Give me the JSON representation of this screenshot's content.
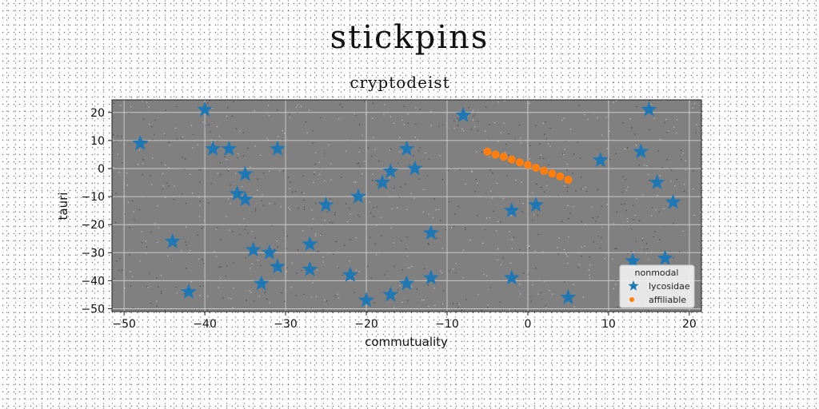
{
  "figure": {
    "title": "stickpins"
  },
  "chart_data": {
    "type": "scatter",
    "title": "cryptodeist",
    "xlabel": "commutuality",
    "ylabel": "tauri",
    "xlim": [
      -51.5,
      21.5
    ],
    "ylim": [
      -51,
      24.5
    ],
    "xticks": [
      -50,
      -40,
      -30,
      -20,
      -10,
      0,
      10,
      20
    ],
    "yticks": [
      -50,
      -40,
      -30,
      -20,
      -10,
      0,
      10,
      20
    ],
    "grid": true,
    "background": "#808080",
    "legend": {
      "title": "nonmodal",
      "placement": "lower-right"
    },
    "series": [
      {
        "name": "lycosidae",
        "marker": "star",
        "color": "#1f77b4",
        "points": [
          [
            -48,
            9
          ],
          [
            -40,
            21
          ],
          [
            -39,
            7
          ],
          [
            -37,
            7
          ],
          [
            -35,
            -2
          ],
          [
            -36,
            -9
          ],
          [
            -35,
            -11
          ],
          [
            -31,
            7
          ],
          [
            -44,
            -26
          ],
          [
            -42,
            -44
          ],
          [
            -34,
            -29
          ],
          [
            -32,
            -30
          ],
          [
            -31,
            -35
          ],
          [
            -33,
            -41
          ],
          [
            -27,
            -27
          ],
          [
            -27,
            -36
          ],
          [
            -25,
            -13
          ],
          [
            -22,
            -38
          ],
          [
            -21,
            -10
          ],
          [
            -20,
            -47
          ],
          [
            -18,
            -5
          ],
          [
            -17,
            -1
          ],
          [
            -15,
            7
          ],
          [
            -14,
            0
          ],
          [
            -17,
            -45
          ],
          [
            -15,
            -41
          ],
          [
            -12,
            -23
          ],
          [
            -12,
            -39
          ],
          [
            -8,
            19
          ],
          [
            -2,
            -15
          ],
          [
            1,
            -13
          ],
          [
            -2,
            -39
          ],
          [
            5,
            -46
          ],
          [
            9,
            3
          ],
          [
            13,
            -33
          ],
          [
            14,
            6
          ],
          [
            15,
            21
          ],
          [
            16,
            -5
          ],
          [
            17,
            -32
          ],
          [
            18,
            -12
          ]
        ]
      },
      {
        "name": "affiliable",
        "marker": "circle",
        "color": "#ff7f0e",
        "points": [
          [
            -5,
            6
          ],
          [
            -4,
            5
          ],
          [
            -3,
            4.2
          ],
          [
            -2,
            3.2
          ],
          [
            -1,
            2.2
          ],
          [
            0,
            1.3
          ],
          [
            1,
            0.3
          ],
          [
            2,
            -0.8
          ],
          [
            3,
            -1.8
          ],
          [
            4,
            -2.8
          ],
          [
            5,
            -4
          ]
        ]
      }
    ]
  }
}
